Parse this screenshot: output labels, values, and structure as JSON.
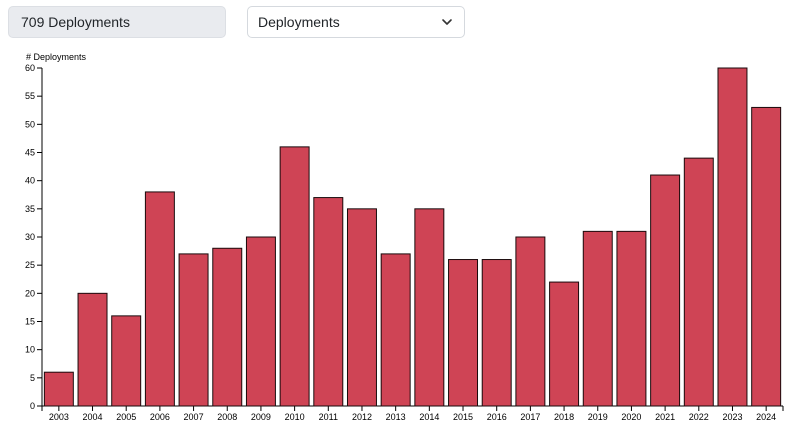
{
  "header": {
    "count_label": "709 Deployments",
    "select_value": "Deployments"
  },
  "colors": {
    "bar_fill": "#cf4455",
    "bar_stroke": "#1a0a0c"
  },
  "chart_data": {
    "type": "bar",
    "ylabel": "# Deployments",
    "xlabel": "",
    "ylim": [
      0,
      60
    ],
    "yticks": [
      0,
      5,
      10,
      15,
      20,
      25,
      30,
      35,
      40,
      45,
      50,
      55,
      60
    ],
    "grid": false,
    "categories": [
      "2003",
      "2004",
      "2005",
      "2006",
      "2007",
      "2008",
      "2009",
      "2010",
      "2011",
      "2012",
      "2013",
      "2014",
      "2015",
      "2016",
      "2017",
      "2018",
      "2019",
      "2020",
      "2021",
      "2022",
      "2023",
      "2024"
    ],
    "series": [
      {
        "values": [
          6,
          20,
          16,
          38,
          27,
          28,
          30,
          46,
          37,
          35,
          27,
          35,
          26,
          26,
          30,
          22,
          31,
          31,
          41,
          44,
          60,
          53
        ]
      }
    ]
  }
}
